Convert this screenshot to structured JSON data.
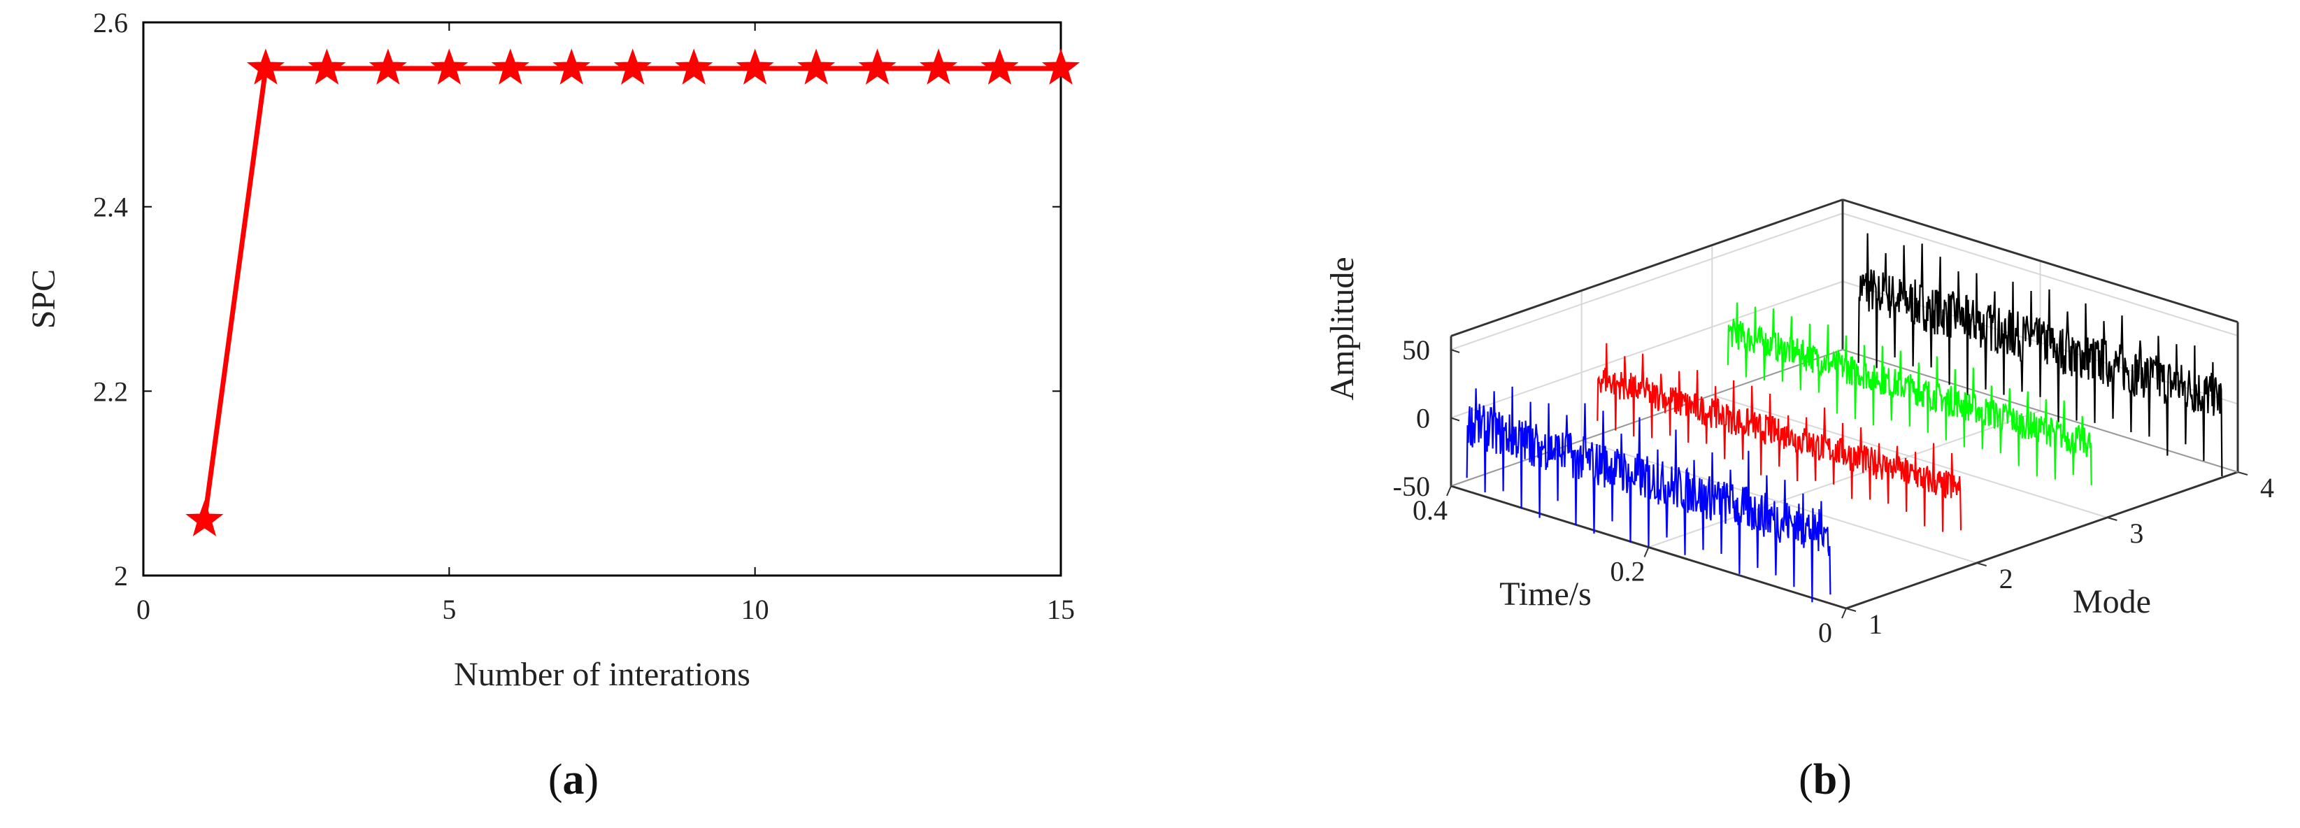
{
  "chart_data": [
    {
      "panel": "a",
      "type": "line",
      "xlabel": "Number of interations",
      "ylabel": "SPC",
      "xlim": [
        0,
        15
      ],
      "ylim": [
        2,
        2.6
      ],
      "xticks": [
        "0",
        "5",
        "10",
        "15"
      ],
      "yticks": [
        "2",
        "2.2",
        "2.4",
        "2.6"
      ],
      "grid": false,
      "marker": "star",
      "color": "#ff0000",
      "series": [
        {
          "x": [
            1,
            2,
            3,
            4,
            5,
            6,
            7,
            8,
            9,
            10,
            11,
            12,
            13,
            14,
            15
          ],
          "y": [
            2.06,
            2.55,
            2.55,
            2.55,
            2.55,
            2.55,
            2.55,
            2.55,
            2.55,
            2.55,
            2.55,
            2.55,
            2.55,
            2.55,
            2.55
          ]
        }
      ]
    },
    {
      "panel": "b",
      "type": "line",
      "projection": "3d",
      "xlabel": "Time/s",
      "ylabel": "Mode",
      "zlabel": "Amplitude",
      "xticks": [
        "0",
        "0.2",
        "0.4"
      ],
      "yticks": [
        "1",
        "2",
        "3",
        "4"
      ],
      "zticks": [
        "-50",
        "0",
        "50"
      ],
      "zlim": [
        -50,
        50
      ],
      "grid": true,
      "series": [
        {
          "mode": 1,
          "color": "#0000ff",
          "time_range": [
            0,
            0.4
          ],
          "peak_amplitude": 45
        },
        {
          "mode": 2,
          "color": "#ff0000",
          "time_range": [
            0,
            0.4
          ],
          "peak_amplitude": 30
        },
        {
          "mode": 3,
          "color": "#00ff00",
          "time_range": [
            0,
            0.4
          ],
          "peak_amplitude": 30
        },
        {
          "mode": 4,
          "color": "#000000",
          "time_range": [
            0,
            0.4
          ],
          "peak_amplitude": 48
        }
      ]
    }
  ],
  "captions": {
    "a": "a",
    "b": "b"
  }
}
